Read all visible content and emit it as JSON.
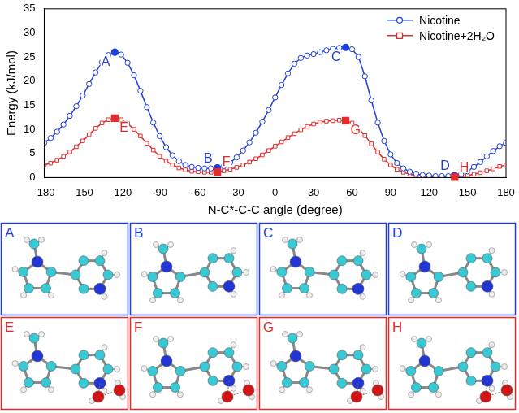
{
  "chart_data": {
    "type": "line",
    "xlabel": "N-C*-C-C angle (degree)",
    "ylabel": "Energy (kJ/mol)",
    "x": [
      -180,
      -175,
      -170,
      -165,
      -160,
      -155,
      -150,
      -145,
      -140,
      -135,
      -130,
      -125,
      -120,
      -115,
      -110,
      -105,
      -100,
      -95,
      -90,
      -85,
      -80,
      -75,
      -70,
      -65,
      -60,
      -55,
      -50,
      -45,
      -40,
      -35,
      -30,
      -25,
      -20,
      -15,
      -10,
      -5,
      0,
      5,
      10,
      15,
      20,
      25,
      30,
      35,
      40,
      45,
      50,
      55,
      60,
      65,
      70,
      75,
      80,
      85,
      90,
      95,
      100,
      105,
      110,
      115,
      120,
      125,
      130,
      135,
      140,
      145,
      150,
      155,
      160,
      165,
      170,
      175,
      180
    ],
    "series": [
      {
        "name": "Nicotine",
        "color": "#1f3fe0",
        "marker": "circle",
        "values": [
          7.2,
          8.2,
          9.5,
          11.0,
          12.8,
          14.8,
          17.0,
          19.4,
          21.8,
          23.9,
          25.4,
          26.0,
          25.5,
          23.8,
          21.2,
          18.0,
          14.6,
          11.4,
          8.6,
          6.3,
          4.6,
          3.4,
          2.6,
          2.2,
          2.0,
          1.9,
          1.9,
          2.0,
          2.4,
          3.1,
          4.2,
          5.6,
          7.3,
          9.3,
          11.6,
          14.0,
          16.6,
          19.2,
          21.6,
          23.6,
          24.8,
          25.3,
          25.6,
          26.0,
          26.4,
          26.7,
          26.9,
          27.0,
          26.6,
          25.0,
          21.0,
          16.0,
          11.4,
          7.6,
          4.8,
          3.0,
          1.9,
          1.2,
          0.8,
          0.5,
          0.4,
          0.3,
          0.3,
          0.3,
          0.4,
          0.7,
          1.3,
          2.2,
          3.2,
          4.4,
          5.5,
          6.5,
          7.2
        ]
      },
      {
        "name": "Nicotine+2H₂O",
        "color": "#e32b2b",
        "marker": "square",
        "values": [
          2.6,
          3.0,
          3.6,
          4.4,
          5.3,
          6.4,
          7.6,
          8.9,
          10.2,
          11.3,
          12.0,
          12.3,
          12.0,
          11.2,
          10.0,
          8.6,
          7.1,
          5.7,
          4.4,
          3.4,
          2.6,
          2.0,
          1.6,
          1.3,
          1.2,
          1.1,
          1.1,
          1.2,
          1.4,
          1.7,
          2.1,
          2.6,
          3.2,
          3.9,
          4.7,
          5.6,
          6.5,
          7.4,
          8.3,
          9.1,
          9.9,
          10.6,
          11.1,
          11.5,
          11.7,
          11.8,
          11.9,
          11.8,
          11.3,
          10.2,
          8.7,
          7.0,
          5.3,
          3.8,
          2.6,
          1.7,
          1.1,
          0.7,
          0.4,
          0.3,
          0.2,
          0.2,
          0.1,
          0.1,
          0.1,
          0.2,
          0.4,
          0.7,
          1.0,
          1.4,
          1.8,
          2.3,
          2.6
        ]
      }
    ],
    "xlim": [
      -180,
      180
    ],
    "xticks": [
      -180,
      -150,
      -120,
      -90,
      -60,
      -30,
      0,
      30,
      60,
      90,
      120,
      150,
      180
    ],
    "ylim": [
      0,
      35
    ],
    "yticks": [
      0,
      5,
      10,
      15,
      20,
      25,
      30,
      35
    ],
    "grid": false,
    "legend": "upper right",
    "annotations": [
      {
        "text": "A",
        "series": "Nicotine",
        "x": -125,
        "y": 26.0
      },
      {
        "text": "B",
        "series": "Nicotine",
        "x": -45,
        "y": 2.0
      },
      {
        "text": "C",
        "series": "Nicotine",
        "x": 55,
        "y": 27.0
      },
      {
        "text": "D",
        "series": "Nicotine",
        "x": 140,
        "y": 0.4
      },
      {
        "text": "E",
        "series": "Nicotine+2H₂O",
        "x": -125,
        "y": 12.3
      },
      {
        "text": "F",
        "series": "Nicotine+2H₂O",
        "x": -45,
        "y": 1.2
      },
      {
        "text": "G",
        "series": "Nicotine+2H₂O",
        "x": 55,
        "y": 11.8
      },
      {
        "text": "H",
        "series": "Nicotine+2H₂O",
        "x": 140,
        "y": 0.1
      }
    ]
  },
  "panels": [
    {
      "label": "A",
      "color": "#1f3fe0",
      "water": false
    },
    {
      "label": "B",
      "color": "#1f3fe0",
      "water": false
    },
    {
      "label": "C",
      "color": "#1f3fe0",
      "water": false
    },
    {
      "label": "D",
      "color": "#1f3fe0",
      "water": false
    },
    {
      "label": "E",
      "color": "#e32b2b",
      "water": true
    },
    {
      "label": "F",
      "color": "#e32b2b",
      "water": true
    },
    {
      "label": "G",
      "color": "#e32b2b",
      "water": true
    },
    {
      "label": "H",
      "color": "#e32b2b",
      "water": true
    }
  ]
}
